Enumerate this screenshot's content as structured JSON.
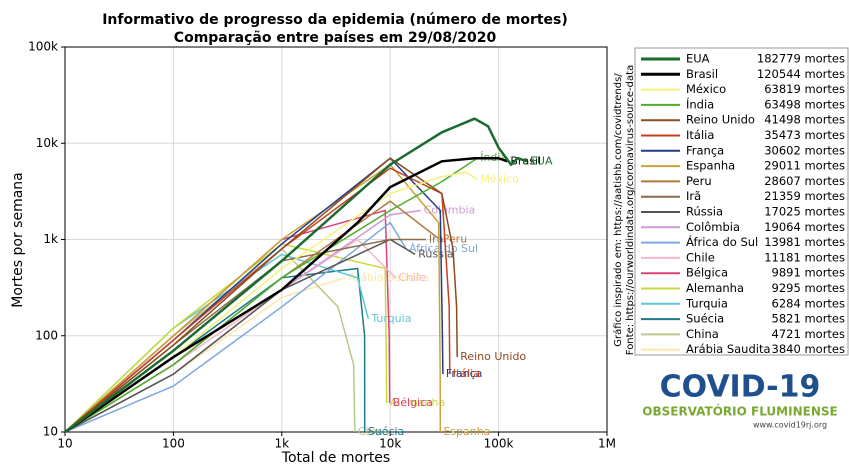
{
  "chart_data": {
    "type": "line",
    "title": "Informativo de progresso da epidemia (número de mortes)",
    "subtitle": "Comparação entre países em 29/08/2020",
    "xlabel": "Total de mortes",
    "ylabel": "Mortes por semana",
    "log_x": true,
    "log_y": true,
    "grid": true,
    "xlim": [
      10,
      1000000
    ],
    "ylim": [
      10,
      100000
    ],
    "xticks": [
      10,
      100,
      {
        "value": 1000,
        "label": "1k"
      },
      {
        "value": 10000,
        "label": "10k"
      },
      {
        "value": 100000,
        "label": "100k"
      },
      {
        "value": 1000000,
        "label": "1M"
      }
    ],
    "yticks": [
      10,
      100,
      {
        "value": 1000,
        "label": "1k"
      },
      {
        "value": 10000,
        "label": "10k"
      },
      {
        "value": 100000,
        "label": "100k"
      }
    ],
    "series": [
      {
        "name": "EUA",
        "legend_value": "182779 mortes",
        "color": "#1a6b2e",
        "x": [
          10,
          100,
          1000,
          10000,
          30000,
          60000,
          80000,
          100000,
          130000,
          150000,
          182779
        ],
        "values": [
          10,
          70,
          600,
          6000,
          13000,
          18000,
          15000,
          9000,
          6000,
          7000,
          6500
        ]
      },
      {
        "name": "Brasil",
        "legend_value": "120544 mortes",
        "color": "#000000",
        "x": [
          10,
          100,
          1000,
          5000,
          10000,
          30000,
          60000,
          100000,
          120544
        ],
        "values": [
          10,
          60,
          300,
          1500,
          3500,
          6500,
          7000,
          7000,
          6500
        ]
      },
      {
        "name": "México",
        "legend_value": "63819 mortes",
        "color": "#f5f07a",
        "x": [
          10,
          100,
          1000,
          10000,
          30000,
          50000,
          63819
        ],
        "values": [
          10,
          60,
          500,
          3000,
          4500,
          5000,
          4200
        ]
      },
      {
        "name": "Índia",
        "legend_value": "63498 mortes",
        "color": "#4daf2a",
        "x": [
          10,
          100,
          1000,
          10000,
          30000,
          63498
        ],
        "values": [
          10,
          50,
          400,
          2000,
          4000,
          7000
        ]
      },
      {
        "name": "Reino Unido",
        "legend_value": "41498 mortes",
        "color": "#8c4a1f",
        "x": [
          10,
          100,
          1000,
          10000,
          30000,
          38000,
          41000,
          41498
        ],
        "values": [
          10,
          80,
          800,
          7000,
          3000,
          800,
          200,
          60
        ]
      },
      {
        "name": "Itália",
        "legend_value": "35473 mortes",
        "color": "#c8401e",
        "x": [
          10,
          100,
          1000,
          10000,
          30000,
          35000,
          35473
        ],
        "values": [
          10,
          90,
          800,
          5500,
          3000,
          200,
          40
        ]
      },
      {
        "name": "França",
        "legend_value": "30602 mortes",
        "color": "#1f3d8a",
        "x": [
          10,
          100,
          1000,
          10000,
          29000,
          30300,
          30602
        ],
        "values": [
          10,
          90,
          900,
          7000,
          2000,
          100,
          40
        ]
      },
      {
        "name": "Espanha",
        "legend_value": "29011 mortes",
        "color": "#c9a33a",
        "x": [
          10,
          100,
          1000,
          10000,
          28000,
          28900,
          29011
        ],
        "values": [
          10,
          100,
          1000,
          6000,
          1500,
          40,
          10
        ]
      },
      {
        "name": "Peru",
        "legend_value": "28607 mortes",
        "color": "#b07a3a",
        "x": [
          10,
          100,
          1000,
          10000,
          28607
        ],
        "values": [
          10,
          50,
          400,
          2500,
          1000
        ]
      },
      {
        "name": "Irã",
        "legend_value": "21359 mortes",
        "color": "#8b6b4a",
        "x": [
          10,
          100,
          1000,
          10000,
          21359
        ],
        "values": [
          10,
          80,
          600,
          1000,
          1000
        ]
      },
      {
        "name": "Rússia",
        "legend_value": "17025 mortes",
        "color": "#555555",
        "x": [
          10,
          100,
          1000,
          10000,
          17025
        ],
        "values": [
          10,
          40,
          300,
          1000,
          700
        ]
      },
      {
        "name": "Colômbia",
        "legend_value": "19064 mortes",
        "color": "#d19ad6",
        "x": [
          10,
          100,
          1000,
          10000,
          19064
        ],
        "values": [
          10,
          40,
          300,
          1800,
          2000
        ]
      },
      {
        "name": "África do Sul",
        "legend_value": "13981 mortes",
        "color": "#7ea6e0",
        "x": [
          10,
          100,
          1000,
          10000,
          13981
        ],
        "values": [
          10,
          30,
          200,
          1500,
          800
        ]
      },
      {
        "name": "Chile",
        "legend_value": "11181 mortes",
        "color": "#f7b6c8",
        "x": [
          10,
          100,
          1000,
          5000,
          11181
        ],
        "values": [
          10,
          50,
          300,
          1000,
          400
        ]
      },
      {
        "name": "Bélgica",
        "legend_value": "9891 mortes",
        "color": "#e0407a",
        "x": [
          10,
          100,
          1000,
          9000,
          9800,
          9891
        ],
        "values": [
          10,
          100,
          1000,
          2000,
          100,
          20
        ]
      },
      {
        "name": "Alemanha",
        "legend_value": "9295 mortes",
        "color": "#c6db3a",
        "x": [
          10,
          100,
          1000,
          9000,
          9295
        ],
        "values": [
          10,
          120,
          900,
          500,
          20
        ]
      },
      {
        "name": "Turquia",
        "legend_value": "6284 mortes",
        "color": "#5cc8d6",
        "x": [
          10,
          100,
          1000,
          5000,
          6284
        ],
        "values": [
          10,
          120,
          700,
          400,
          150
        ]
      },
      {
        "name": "Suécia",
        "legend_value": "5821 mortes",
        "color": "#1a7a8a",
        "x": [
          10,
          100,
          1000,
          5000,
          5800,
          5821
        ],
        "values": [
          10,
          60,
          400,
          500,
          100,
          10
        ]
      },
      {
        "name": "China",
        "legend_value": "4721 mortes",
        "color": "#b8c98a",
        "x": [
          10,
          100,
          1000,
          3300,
          4600,
          4721
        ],
        "values": [
          10,
          100,
          800,
          200,
          50,
          10
        ]
      },
      {
        "name": "Arábia Saudita",
        "legend_value": "3840 mortes",
        "color": "#fde7a8",
        "x": [
          10,
          100,
          1000,
          3840
        ],
        "values": [
          10,
          40,
          250,
          400
        ]
      }
    ],
    "source_note": "Gráfico inspirado em: https://aatishb.com/covidtrends/",
    "source": "Fonte: https://ourworldindata.org/coronavirus-source-data",
    "logo": {
      "title": "COVID-19",
      "subtitle": "OBSERVATÓRIO FLUMINENSE",
      "url": "www.covid19rj.org"
    }
  }
}
